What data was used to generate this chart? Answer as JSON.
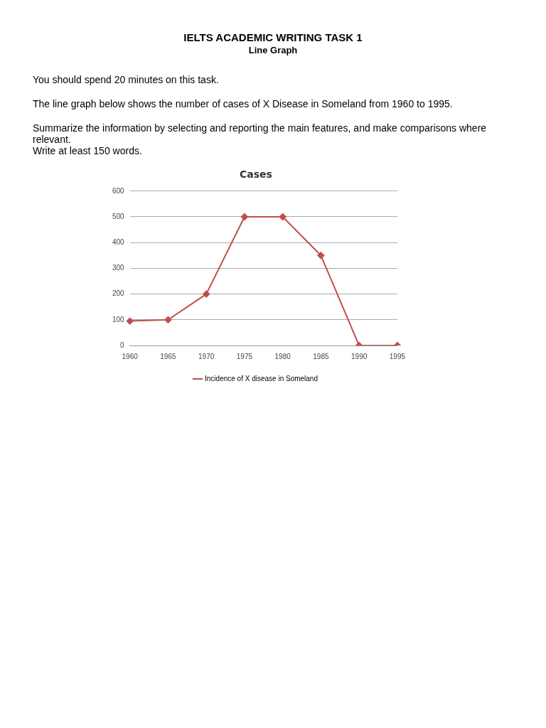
{
  "chart_data": {
    "type": "line",
    "title": "Cases",
    "annotations": [
      "IELTS ACADEMIC WRITING TASK 1",
      "Line Graph",
      "You should spend 20 minutes on this task.",
      "The line graph below shows the number of cases of X Disease in Someland from 1960 to 1995.",
      "Summarize the information by selecting and reporting the main features, and make comparisons where relevant.\nWrite at least 150 words."
    ],
    "categories": [
      "1960",
      "1965",
      "1970",
      "1975",
      "1980",
      "1985",
      "1990",
      "1995"
    ],
    "series": [
      {
        "name": "Incidence of X disease in Someland",
        "color": "#c0504d",
        "values": [
          95,
          100,
          200,
          500,
          500,
          350,
          0,
          0
        ]
      }
    ],
    "ylim": [
      0,
      600
    ],
    "yticks": [
      0,
      100,
      200,
      300,
      400,
      500,
      600
    ],
    "grid": "y",
    "legend": "bottom",
    "marker": "diamond",
    "line_style": "solid"
  }
}
